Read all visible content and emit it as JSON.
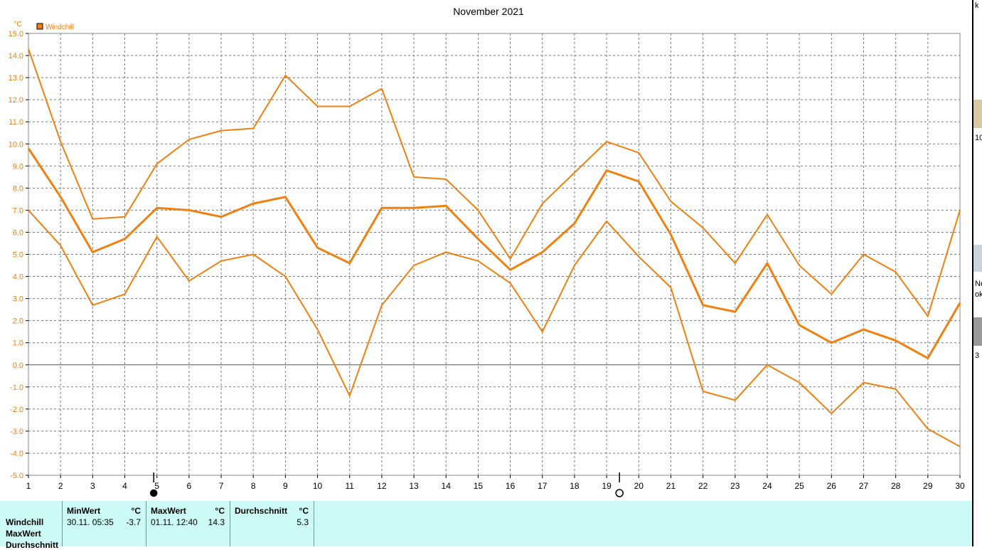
{
  "chart_data": {
    "type": "line",
    "title": "November 2021",
    "ylabel": "°C",
    "legend": [
      "Windchill"
    ],
    "x": [
      1,
      2,
      3,
      4,
      5,
      6,
      7,
      8,
      9,
      10,
      11,
      12,
      13,
      14,
      15,
      16,
      17,
      18,
      19,
      20,
      21,
      22,
      23,
      24,
      25,
      26,
      27,
      28,
      29,
      30
    ],
    "ylim": [
      -5.0,
      15.0
    ],
    "yticks": [
      "-5.0",
      "-4.0",
      "-3.0",
      "-2.0",
      "-1.0",
      "0.0",
      "1.0",
      "2.0",
      "3.0",
      "4.0",
      "5.0",
      "6.0",
      "7.0",
      "8.0",
      "9.0",
      "10.0",
      "11.0",
      "12.0",
      "13.0",
      "14.0",
      "15.0"
    ],
    "grid": true,
    "colors": {
      "series": "#f08010",
      "grid": "#7a7a7a",
      "axis": "#000000"
    },
    "series": [
      {
        "role": "max",
        "values": [
          14.3,
          10.1,
          6.6,
          6.7,
          9.1,
          10.2,
          10.6,
          10.7,
          13.1,
          11.7,
          11.7,
          12.5,
          8.5,
          8.4,
          7.0,
          4.8,
          7.3,
          8.7,
          10.1,
          9.6,
          7.4,
          6.2,
          4.6,
          6.8,
          4.5,
          3.2,
          5.0,
          4.2,
          2.2,
          7.0
        ]
      },
      {
        "role": "avg",
        "values": [
          9.8,
          7.6,
          5.1,
          5.7,
          7.1,
          7.0,
          6.7,
          7.3,
          7.6,
          5.3,
          4.6,
          7.1,
          7.1,
          7.2,
          5.7,
          4.3,
          5.1,
          6.4,
          8.8,
          8.3,
          5.9,
          2.7,
          2.4,
          4.6,
          1.8,
          1.0,
          1.6,
          1.1,
          0.3,
          2.8
        ]
      },
      {
        "role": "min",
        "values": [
          7.0,
          5.4,
          2.7,
          3.2,
          5.8,
          3.8,
          4.7,
          5.0,
          4.0,
          1.6,
          -1.4,
          2.7,
          4.5,
          5.1,
          4.7,
          3.7,
          1.5,
          4.5,
          6.5,
          4.9,
          3.5,
          -1.2,
          -1.6,
          0.0,
          -0.8,
          -2.2,
          -0.8,
          -1.1,
          -2.9,
          -3.7
        ]
      }
    ],
    "moon_markers": [
      {
        "day": 4.9,
        "type": "new-moon"
      },
      {
        "day": 19.4,
        "type": "full-moon"
      }
    ]
  },
  "stats": {
    "rows": [
      "Windchill",
      "MaxWert",
      "Durchschnitt"
    ],
    "min": {
      "header": "MinWert",
      "unit": "°C",
      "datetime": "30.11.  05:35",
      "value": "-3.7"
    },
    "max": {
      "header": "MaxWert",
      "unit": "°C",
      "datetime": "01.11.  12:40",
      "value": "14.3"
    },
    "avg": {
      "header": "Durchschnitt",
      "unit": "°C",
      "value": "5.3"
    }
  },
  "right_strip": {
    "fragments": [
      "k",
      "10",
      "Ne",
      "ok",
      "3"
    ]
  }
}
